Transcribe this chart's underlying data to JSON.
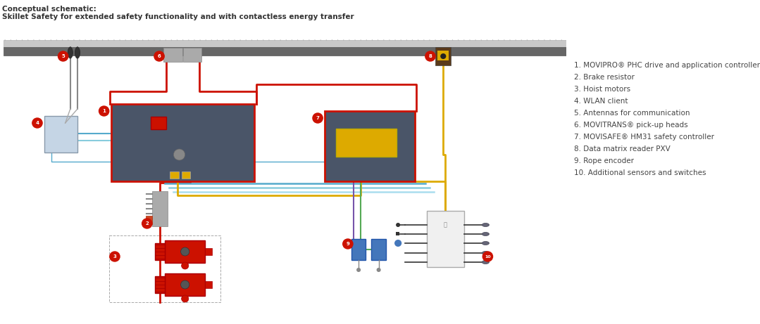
{
  "title_line1": "Conceptual schematic:",
  "title_line2": "Skillet Safety for extended safety functionality and with contactless energy transfer",
  "legend_items": [
    "1. MOVIPRO® PHC drive and application controller",
    "2. Brake resistor",
    "3. Hoist motors",
    "4. WLAN client",
    "5. Antennas for communication",
    "6. MOVITRANS® pick-up heads",
    "7. MOVISAFE® HM31 safety controller",
    "8. Data matrix reader PXV",
    "9. Rope encoder",
    "10. Additional sensors and switches"
  ],
  "bg_color": "#ffffff",
  "wire_red": "#cc1100",
  "wire_blue": "#55aacc",
  "wire_yellow": "#ddaa00",
  "wire_green": "#55aa55",
  "wire_purple": "#7755aa",
  "dark_box": "#4a5568",
  "badge_red": "#cc1100"
}
